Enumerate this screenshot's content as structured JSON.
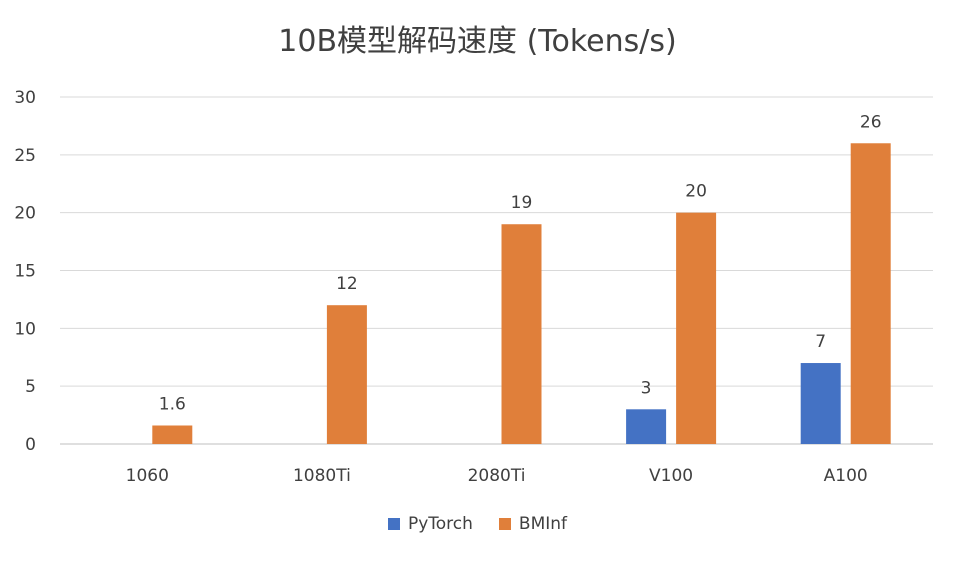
{
  "chart_data": {
    "type": "bar",
    "title": "10B模型解码速度 (Tokens/s)",
    "categories": [
      "1060",
      "1080Ti",
      "2080Ti",
      "V100",
      "A100"
    ],
    "series": [
      {
        "name": "PyTorch",
        "color": "#4472C4",
        "values": [
          null,
          null,
          null,
          3,
          7
        ],
        "labels": [
          "",
          "",
          "",
          "3",
          "7"
        ]
      },
      {
        "name": "BMInf",
        "color": "#E07F3A",
        "values": [
          1.6,
          12,
          19,
          20,
          26
        ],
        "labels": [
          "1.6",
          "12",
          "19",
          "20",
          "26"
        ]
      }
    ],
    "ylim": [
      0,
      30
    ],
    "yticks": [
      "0",
      "5",
      "10",
      "15",
      "20",
      "25",
      "30"
    ],
    "grid": true,
    "legend": "bottom"
  }
}
